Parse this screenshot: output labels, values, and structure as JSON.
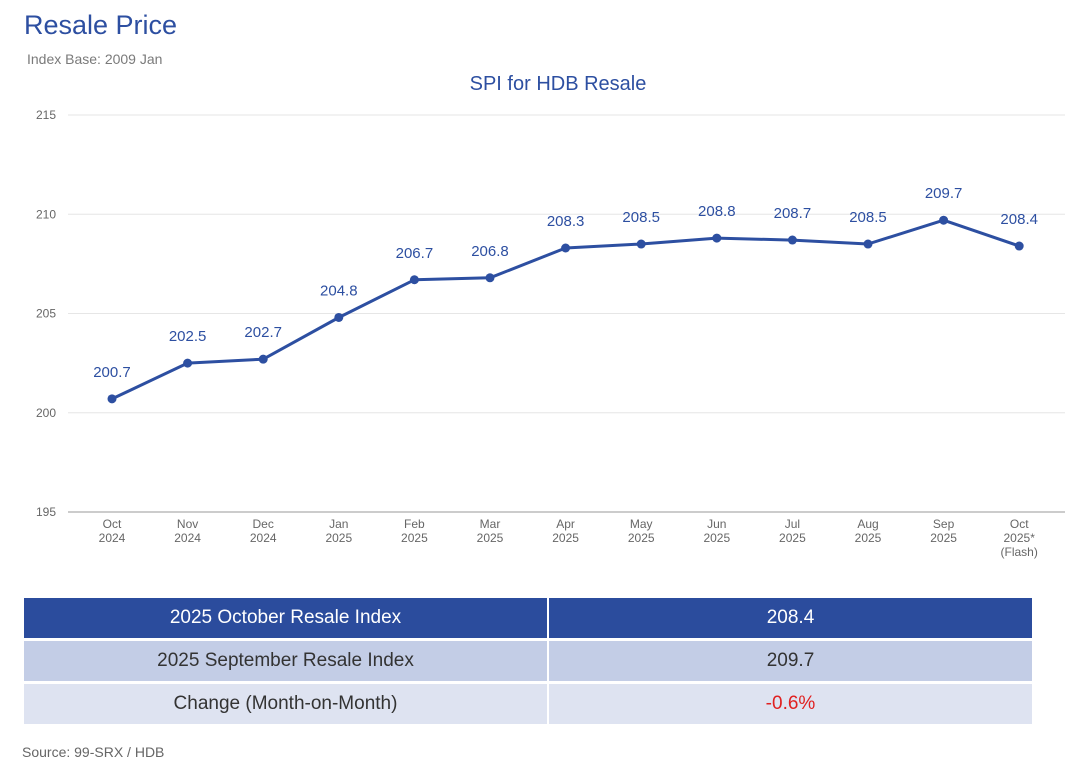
{
  "header": {
    "title": "Resale Price",
    "subtitle": "Index Base: 2009 Jan"
  },
  "chart_data": {
    "type": "line",
    "title": "SPI for HDB Resale",
    "xlabel": "",
    "ylabel": "",
    "ylim": [
      195,
      215
    ],
    "yticks": [
      195,
      200,
      205,
      210,
      215
    ],
    "grid": true,
    "categories": [
      [
        "Oct",
        "2024"
      ],
      [
        "Nov",
        "2024"
      ],
      [
        "Dec",
        "2024"
      ],
      [
        "Jan",
        "2025"
      ],
      [
        "Feb",
        "2025"
      ],
      [
        "Mar",
        "2025"
      ],
      [
        "Apr",
        "2025"
      ],
      [
        "May",
        "2025"
      ],
      [
        "Jun",
        "2025"
      ],
      [
        "Jul",
        "2025"
      ],
      [
        "Aug",
        "2025"
      ],
      [
        "Sep",
        "2025"
      ],
      [
        "Oct",
        "2025*",
        "(Flash)"
      ]
    ],
    "series": [
      {
        "name": "SPI for HDB Resale",
        "color": "#2d4fa1",
        "values": [
          200.7,
          202.5,
          202.7,
          204.8,
          206.7,
          206.8,
          208.3,
          208.5,
          208.8,
          208.7,
          208.5,
          209.7,
          208.4
        ]
      }
    ]
  },
  "summary": {
    "row1": {
      "label": "2025 October Resale Index",
      "value": "208.4"
    },
    "row2": {
      "label": "2025 September Resale Index",
      "value": "209.7"
    },
    "row3": {
      "label": "Change (Month-on-Month)",
      "value": "-0.6%"
    },
    "negative_color": "#e02020"
  },
  "source": "Source: 99-SRX / HDB"
}
